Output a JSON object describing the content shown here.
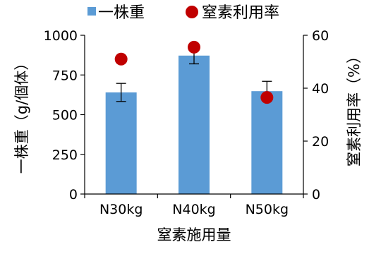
{
  "chart_data": {
    "type": "bar",
    "categories": [
      "N30kg",
      "N40kg",
      "N50kg"
    ],
    "series": [
      {
        "name": "一株重",
        "kind": "bar",
        "axis": "left",
        "values": [
          640,
          872,
          648
        ],
        "error": [
          57,
          52,
          62
        ],
        "color": "#5b9bd5"
      },
      {
        "name": "窒素利用率",
        "kind": "scatter",
        "axis": "right",
        "values": [
          51,
          55.5,
          36.5
        ],
        "color": "#c00000"
      }
    ],
    "xlabel": "窒素施用量",
    "ylabel": "一株重（g/個体）",
    "y2label": "窒素利用率（%）",
    "ylim": [
      0,
      1000
    ],
    "y2lim": [
      0,
      60
    ],
    "yticks": [
      "0",
      "250",
      "500",
      "750",
      "1000"
    ],
    "y2ticks": [
      "0",
      "20",
      "40",
      "60"
    ],
    "legend_position": "top",
    "grid": false
  }
}
